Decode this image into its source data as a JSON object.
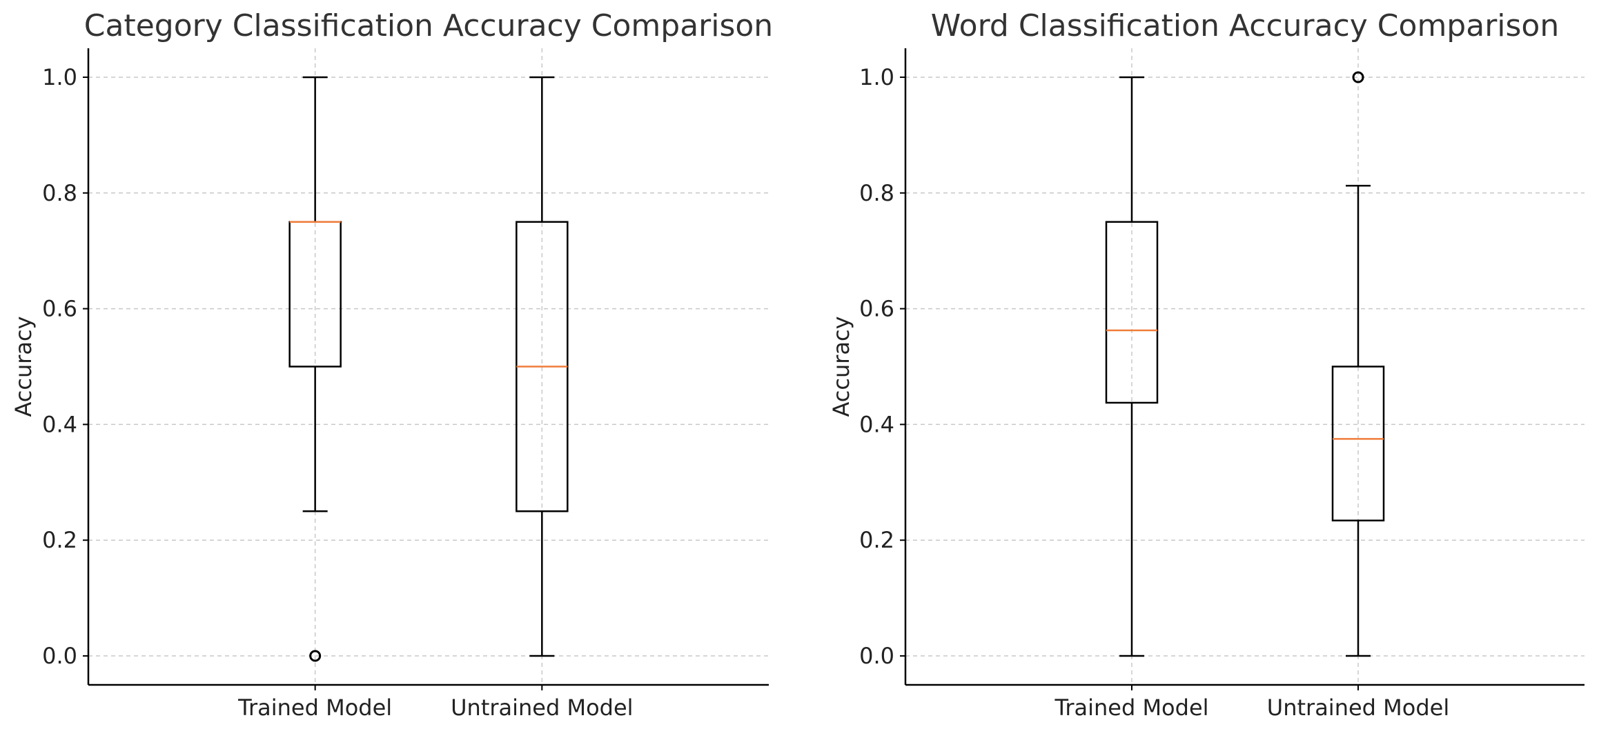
{
  "colors": {
    "median": "#f07c3a",
    "box": "#000000",
    "grid": "#c8c8c8"
  },
  "chart_data": [
    {
      "type": "boxplot",
      "title": "Category Classification Accuracy Comparison",
      "xlabel": "",
      "ylabel": "Accuracy",
      "ylim": [
        -0.05,
        1.05
      ],
      "yticks": [
        0.0,
        0.2,
        0.4,
        0.6,
        0.8,
        1.0
      ],
      "ytick_labels": [
        "0.0",
        "0.2",
        "0.4",
        "0.6",
        "0.8",
        "1.0"
      ],
      "grid": true,
      "categories": [
        "Trained Model",
        "Untrained Model"
      ],
      "boxes": [
        {
          "whislo": 0.25,
          "q1": 0.5,
          "med": 0.75,
          "q3": 0.75,
          "whishi": 1.0,
          "fliers": [
            0.0
          ]
        },
        {
          "whislo": 0.0,
          "q1": 0.25,
          "med": 0.5,
          "q3": 0.75,
          "whishi": 1.0,
          "fliers": []
        }
      ]
    },
    {
      "type": "boxplot",
      "title": "Word Classification Accuracy Comparison",
      "xlabel": "",
      "ylabel": "Accuracy",
      "ylim": [
        -0.05,
        1.05
      ],
      "yticks": [
        0.0,
        0.2,
        0.4,
        0.6,
        0.8,
        1.0
      ],
      "ytick_labels": [
        "0.0",
        "0.2",
        "0.4",
        "0.6",
        "0.8",
        "1.0"
      ],
      "grid": true,
      "categories": [
        "Trained Model",
        "Untrained Model"
      ],
      "boxes": [
        {
          "whislo": 0.0,
          "q1": 0.4375,
          "med": 0.5625,
          "q3": 0.75,
          "whishi": 1.0,
          "fliers": []
        },
        {
          "whislo": 0.0,
          "q1": 0.234,
          "med": 0.375,
          "q3": 0.5,
          "whishi": 0.8125,
          "fliers": [
            1.0
          ]
        }
      ]
    }
  ]
}
